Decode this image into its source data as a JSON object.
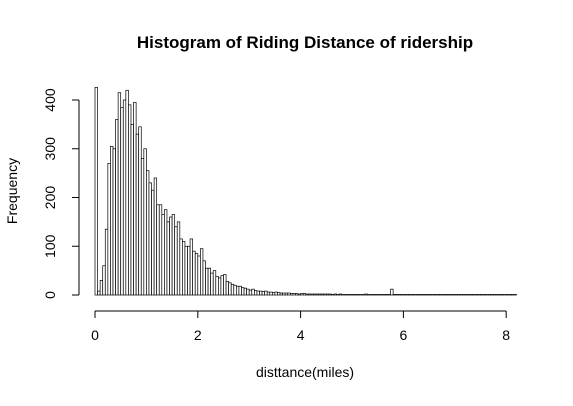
{
  "chart_data": {
    "type": "bar",
    "title": "Histogram of Riding Distance of ridership",
    "xlabel": "disttance(miles)",
    "ylabel": "Frequency",
    "xlim": [
      0,
      8.2
    ],
    "ylim": [
      0,
      430
    ],
    "x_ticks": [
      0,
      2,
      4,
      6,
      8
    ],
    "y_ticks": [
      0,
      100,
      200,
      300,
      400
    ],
    "bin_width": 0.05,
    "bin_start": 0,
    "grid": false,
    "bar_fill": "#ffffff",
    "bar_stroke": "#000000",
    "values": [
      426,
      8,
      30,
      60,
      135,
      270,
      305,
      300,
      360,
      415,
      385,
      400,
      420,
      390,
      350,
      395,
      330,
      345,
      280,
      300,
      255,
      230,
      215,
      240,
      185,
      185,
      165,
      175,
      150,
      160,
      165,
      140,
      150,
      115,
      110,
      100,
      100,
      115,
      90,
      85,
      80,
      95,
      70,
      55,
      55,
      45,
      50,
      38,
      35,
      40,
      42,
      28,
      25,
      22,
      20,
      18,
      18,
      15,
      14,
      12,
      10,
      12,
      9,
      8,
      8,
      7,
      8,
      6,
      6,
      5,
      6,
      5,
      4,
      4,
      4,
      4,
      3,
      3,
      3,
      2,
      3,
      3,
      2,
      2,
      2,
      2,
      2,
      2,
      2,
      2,
      2,
      2,
      1,
      2,
      1,
      2,
      1,
      1,
      1,
      1,
      1,
      1,
      1,
      1,
      1,
      2,
      1,
      1,
      1,
      1,
      1,
      1,
      1,
      1,
      1,
      12,
      1,
      1,
      1,
      1,
      1,
      1,
      1,
      1,
      1,
      1,
      1,
      1,
      1,
      1,
      1,
      1,
      1,
      1,
      1,
      1,
      1,
      1,
      1,
      1,
      1,
      1,
      1,
      1,
      1,
      1,
      1,
      1,
      1,
      1,
      1,
      1,
      1,
      1,
      1,
      1,
      1,
      1,
      1,
      1,
      1,
      1,
      1,
      1
    ]
  }
}
